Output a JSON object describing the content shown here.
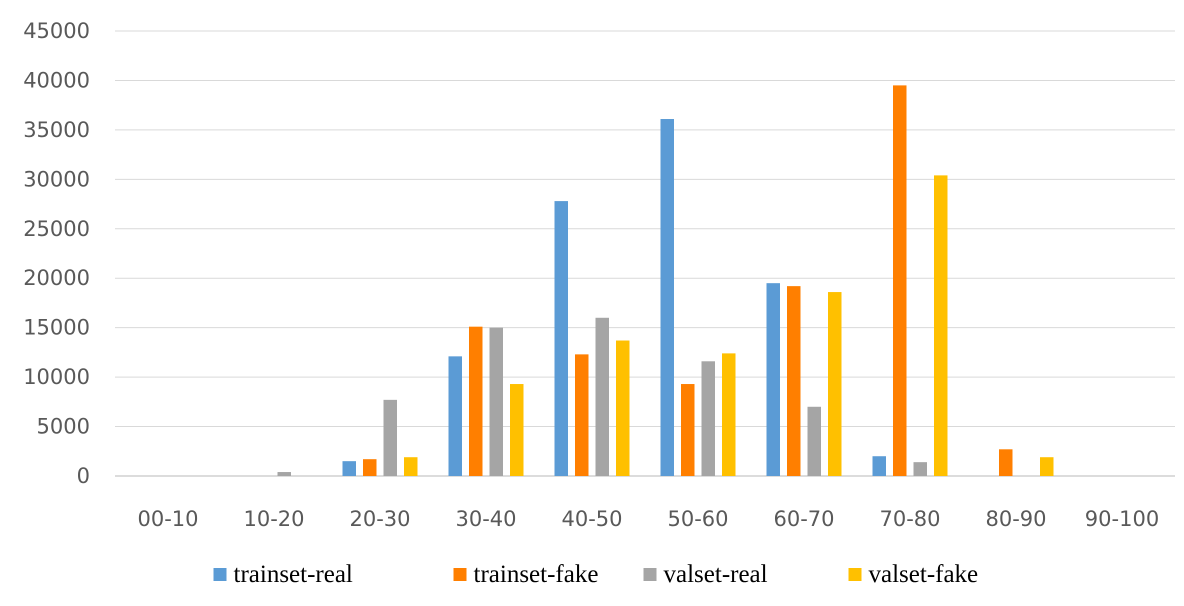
{
  "chart_data": {
    "type": "bar",
    "categories": [
      "00-10",
      "10-20",
      "20-30",
      "30-40",
      "40-50",
      "50-60",
      "60-70",
      "70-80",
      "80-90",
      "90-100"
    ],
    "series": [
      {
        "name": "trainset-real",
        "color": "#5b9bd5",
        "values": [
          0,
          0,
          1500,
          12100,
          27800,
          36100,
          19500,
          2000,
          0,
          0
        ]
      },
      {
        "name": "trainset-fake",
        "color": "#ff7f00",
        "values": [
          0,
          0,
          1700,
          15100,
          12300,
          9300,
          19200,
          39500,
          2700,
          0
        ]
      },
      {
        "name": "valset-real",
        "color": "#a5a5a5",
        "values": [
          0,
          400,
          7700,
          15000,
          16000,
          11600,
          7000,
          1400,
          0,
          0
        ]
      },
      {
        "name": "valset-fake",
        "color": "#ffc000",
        "values": [
          0,
          0,
          1900,
          9300,
          13700,
          12400,
          18600,
          30400,
          1900,
          0
        ]
      }
    ],
    "ylim": [
      0,
      45000
    ],
    "yticks": [
      0,
      5000,
      10000,
      15000,
      20000,
      25000,
      30000,
      35000,
      40000,
      45000
    ],
    "grid": true,
    "legend_position": "bottom",
    "title": "",
    "xlabel": "",
    "ylabel": ""
  }
}
